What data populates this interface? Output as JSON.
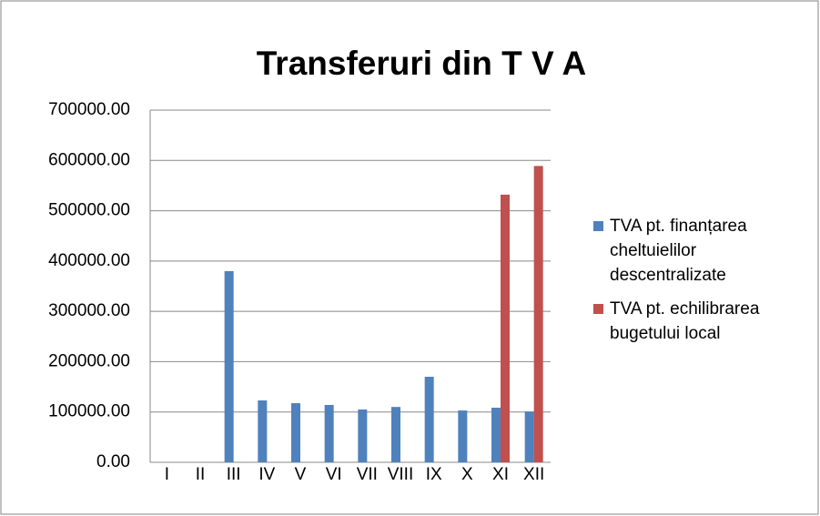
{
  "chart_data": {
    "type": "bar",
    "title": "Transferuri din T V A",
    "categories": [
      "I",
      "II",
      "III",
      "IV",
      "V",
      "VI",
      "VII",
      "VIII",
      "IX",
      "X",
      "XI",
      "XII"
    ],
    "series": [
      {
        "name": "TVA pt. finanțarea cheltuielilor descentralizate",
        "color": "#4f81bd",
        "values": [
          0,
          0,
          380000,
          123000,
          117500,
          114000,
          105000,
          110000,
          170000,
          103000,
          108500,
          101000
        ]
      },
      {
        "name": "TVA pt. echilibrarea bugetului local",
        "color": "#c0504d",
        "values": [
          0,
          0,
          0,
          0,
          0,
          0,
          0,
          0,
          0,
          0,
          532000,
          589000
        ]
      }
    ],
    "ylim": [
      0,
      700000
    ],
    "yticks": [
      {
        "value": 0,
        "label": "0.00"
      },
      {
        "value": 100000,
        "label": "100000.00"
      },
      {
        "value": 200000,
        "label": "200000.00"
      },
      {
        "value": 300000,
        "label": "300000.00"
      },
      {
        "value": 400000,
        "label": "400000.00"
      },
      {
        "value": 500000,
        "label": "500000.00"
      },
      {
        "value": 600000,
        "label": "600000.00"
      },
      {
        "value": 700000,
        "label": "700000.00"
      }
    ],
    "grid": true,
    "legend": "right"
  }
}
